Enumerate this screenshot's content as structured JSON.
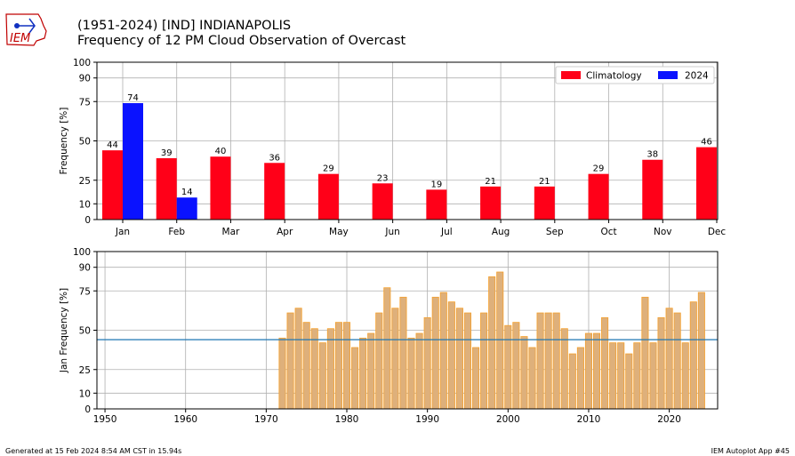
{
  "header": {
    "title_line1": "(1951-2024) [IND] INDIANAPOLIS",
    "title_line2": "Frequency of 12 PM Cloud Observation of Overcast",
    "logo_text": "IEM"
  },
  "footer": {
    "left": "Generated at 15 Feb 2024 8:54 AM CST in 15.94s",
    "right": "IEM Autoplot App #45"
  },
  "colors": {
    "climatology": "#ff0018",
    "year2024": "#0a12ff",
    "annual_bar_fill": "#deb07b",
    "annual_bar_edge": "#f5a02d",
    "average_line": "#1f77b4",
    "grid": "#b0b0b0"
  },
  "chart_data": [
    {
      "type": "bar",
      "ylabel": "Frequency [%]",
      "ylim": [
        0,
        100
      ],
      "yticks": [
        0,
        10,
        25,
        50,
        75,
        90,
        100
      ],
      "grid": true,
      "legend_position": "top-right",
      "categories": [
        "Jan",
        "Feb",
        "Mar",
        "Apr",
        "May",
        "Jun",
        "Jul",
        "Aug",
        "Sep",
        "Oct",
        "Nov",
        "Dec"
      ],
      "series": [
        {
          "name": "Climatology",
          "color_key": "climatology",
          "values": [
            44,
            39,
            40,
            36,
            29,
            23,
            19,
            21,
            21,
            29,
            38,
            46
          ]
        },
        {
          "name": "2024",
          "color_key": "year2024",
          "values": [
            74,
            14,
            null,
            null,
            null,
            null,
            null,
            null,
            null,
            null,
            null,
            null
          ]
        }
      ]
    },
    {
      "type": "bar",
      "ylabel": "Jan Frequency [%]",
      "ylim": [
        0,
        100
      ],
      "xlim": [
        1949,
        2026
      ],
      "yticks": [
        0,
        10,
        25,
        50,
        75,
        90,
        100
      ],
      "xticks": [
        1950,
        1960,
        1970,
        1980,
        1990,
        2000,
        2010,
        2020
      ],
      "grid": true,
      "average_line": 44,
      "x": [
        1972,
        1973,
        1974,
        1975,
        1976,
        1977,
        1978,
        1979,
        1980,
        1981,
        1982,
        1983,
        1984,
        1985,
        1986,
        1987,
        1988,
        1989,
        1990,
        1991,
        1992,
        1993,
        1994,
        1995,
        1996,
        1997,
        1998,
        1999,
        2000,
        2001,
        2002,
        2003,
        2004,
        2005,
        2006,
        2007,
        2008,
        2009,
        2010,
        2011,
        2012,
        2013,
        2014,
        2015,
        2016,
        2017,
        2018,
        2019,
        2020,
        2021,
        2022,
        2023,
        2024
      ],
      "values": [
        45,
        61,
        64,
        55,
        51,
        42,
        51,
        55,
        55,
        39,
        45,
        48,
        61,
        77,
        64,
        71,
        45,
        48,
        58,
        71,
        74,
        68,
        64,
        61,
        39,
        61,
        84,
        87,
        53,
        55,
        46,
        39,
        61,
        61,
        61,
        51,
        35,
        39,
        48,
        48,
        58,
        42,
        42,
        35,
        42,
        71,
        42,
        58,
        64,
        61,
        42,
        68,
        74
      ]
    }
  ]
}
